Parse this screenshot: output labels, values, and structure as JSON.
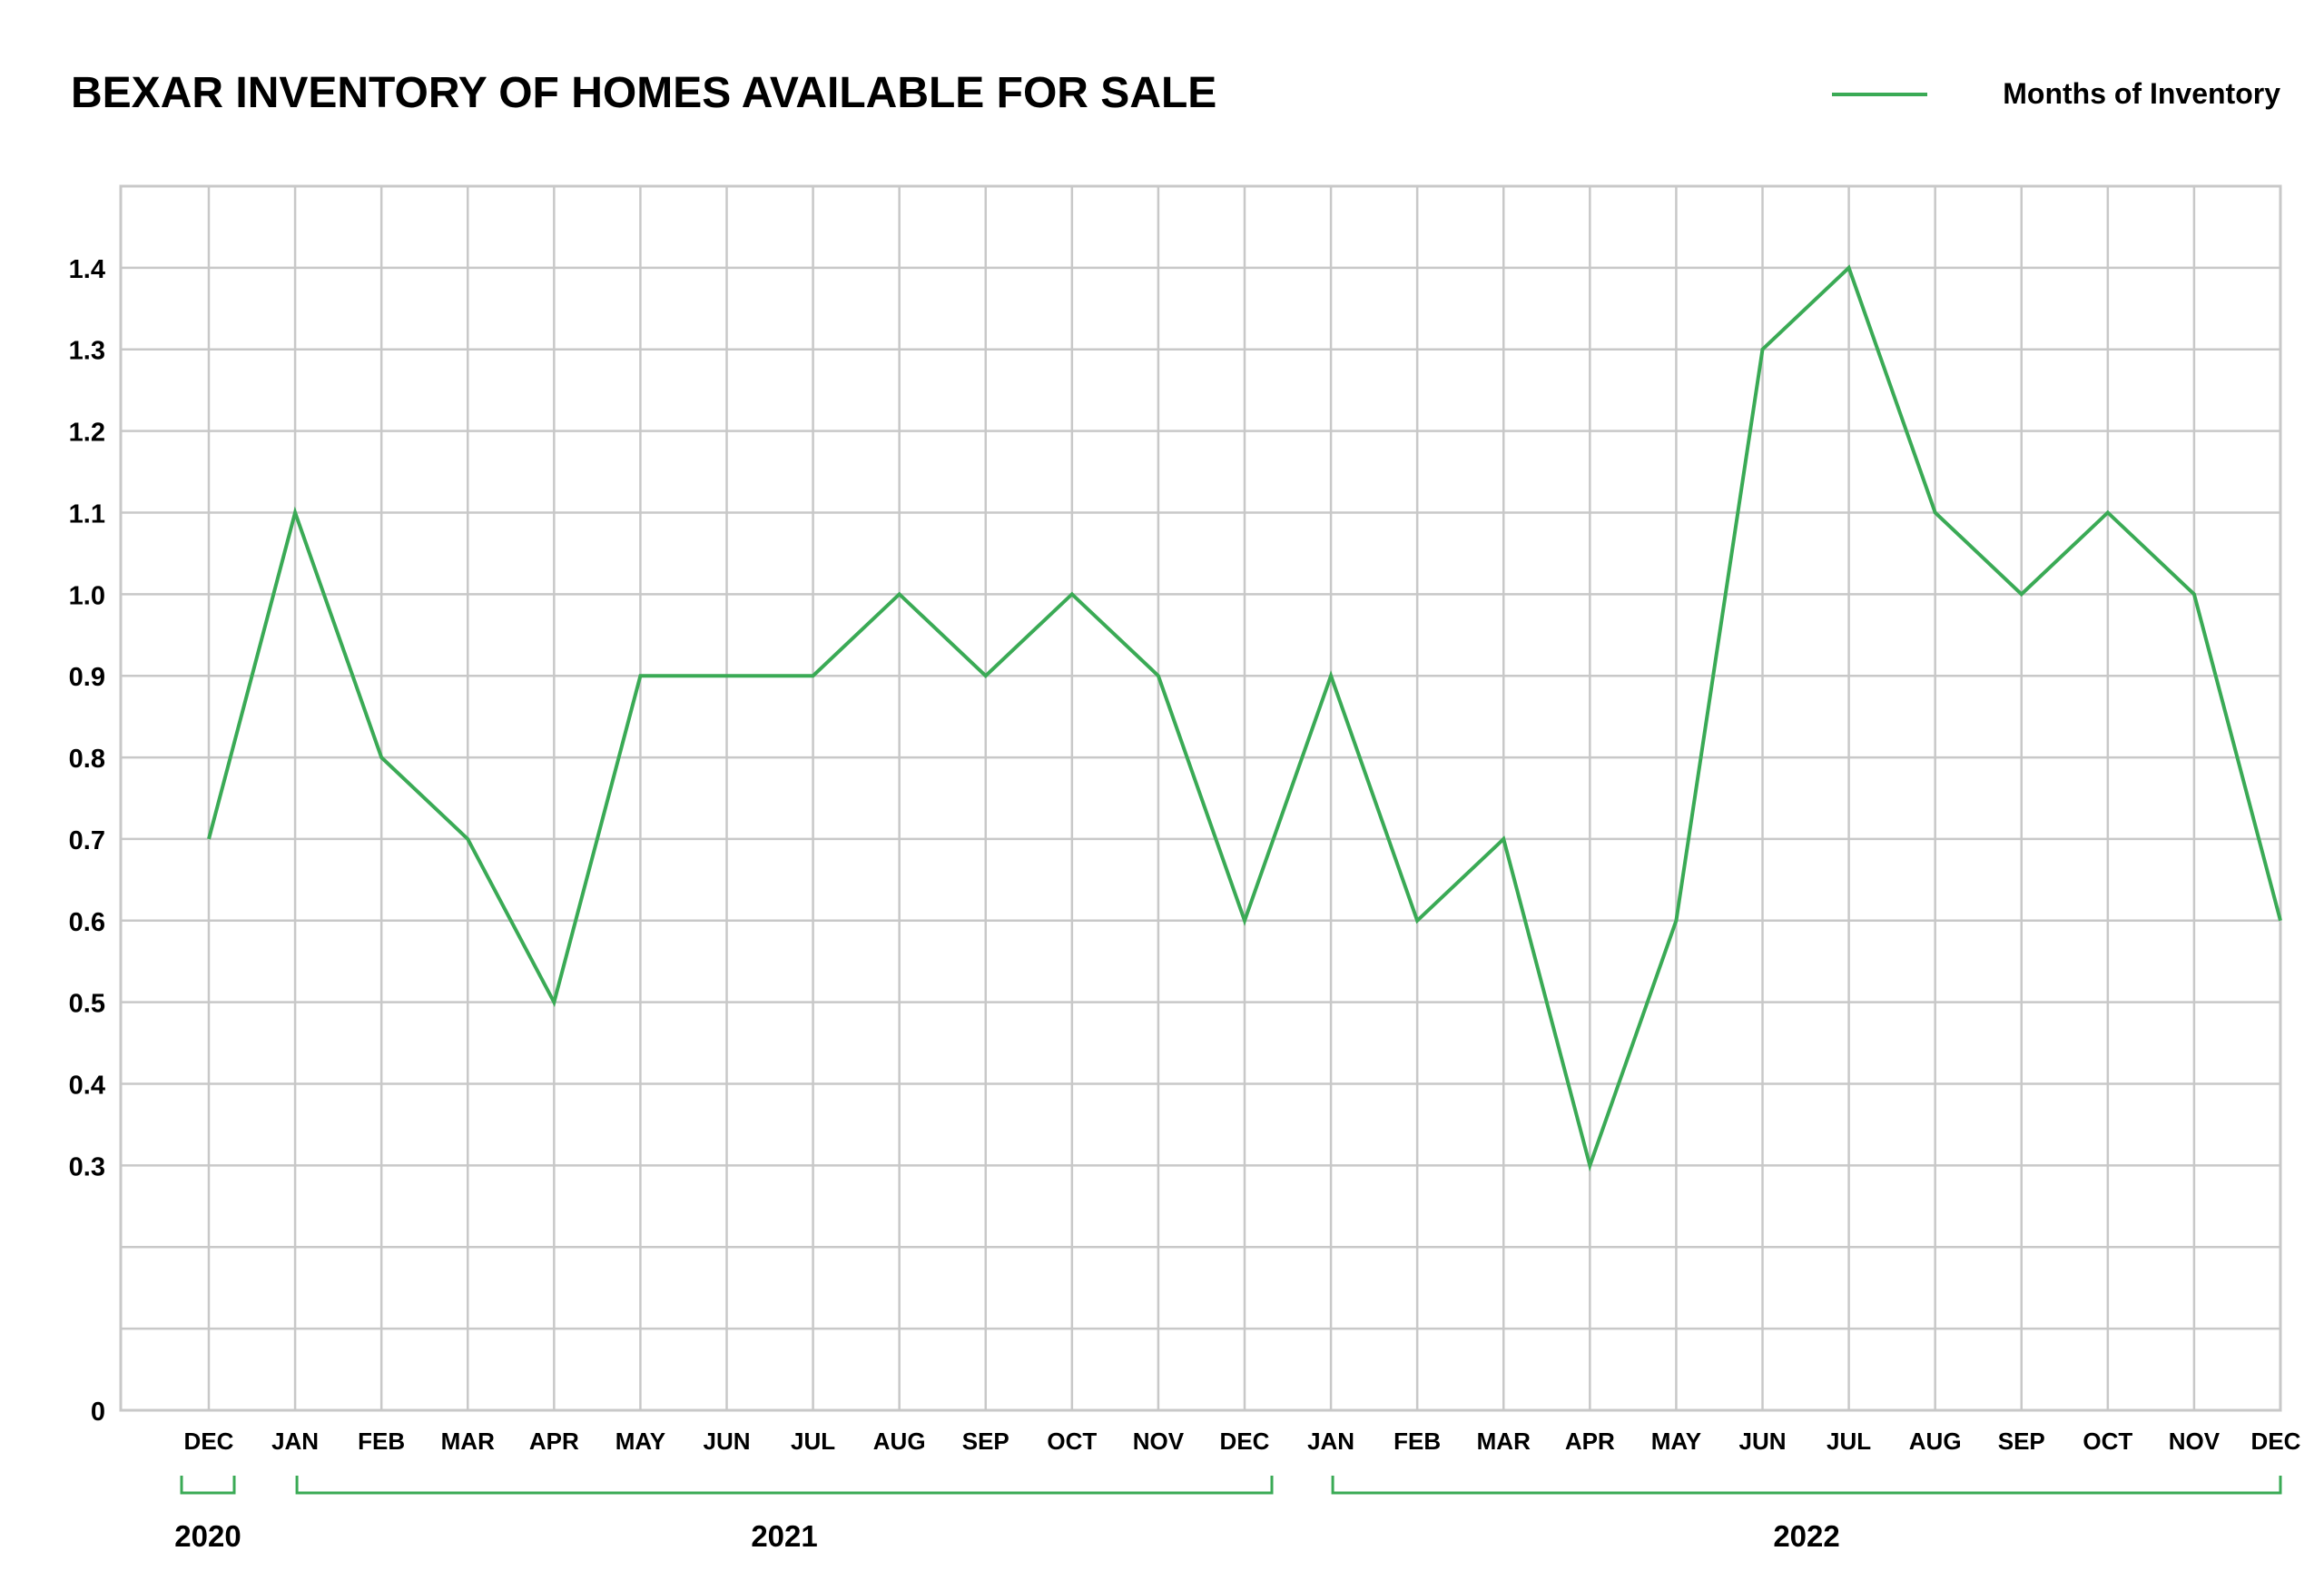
{
  "chart_data": {
    "type": "line",
    "title": "BEXAR INVENTORY OF HOMES AVAILABLE FOR SALE",
    "xlabel": "",
    "ylabel": "",
    "legend": {
      "placement": "top-right",
      "entries": [
        "Months of Inventory"
      ]
    },
    "grid": true,
    "ylim": [
      0,
      1.5
    ],
    "y_ticks": [
      0,
      0.3,
      0.4,
      0.5,
      0.6,
      0.7,
      0.8,
      0.9,
      1.0,
      1.1,
      1.2,
      1.3,
      1.4
    ],
    "y_tick_labels": [
      "0",
      "0.3",
      "0.4",
      "0.5",
      "0.6",
      "0.7",
      "0.8",
      "0.9",
      "1.0",
      "1.1",
      "1.2",
      "1.3",
      "1.4"
    ],
    "categories": [
      "DEC",
      "JAN",
      "FEB",
      "MAR",
      "APR",
      "MAY",
      "JUN",
      "JUL",
      "AUG",
      "SEP",
      "OCT",
      "NOV",
      "DEC",
      "JAN",
      "FEB",
      "MAR",
      "APR",
      "MAY",
      "JUN",
      "JUL",
      "AUG",
      "SEP",
      "OCT",
      "NOV",
      "DEC"
    ],
    "year_groups": [
      {
        "label": "2020",
        "start": 0,
        "end": 0
      },
      {
        "label": "2021",
        "start": 1,
        "end": 12
      },
      {
        "label": "2022",
        "start": 13,
        "end": 24
      }
    ],
    "series": [
      {
        "name": "Months of Inventory",
        "color": "#3aaa55",
        "values": [
          0.7,
          1.1,
          0.8,
          0.7,
          0.5,
          0.9,
          0.9,
          0.9,
          1.0,
          0.9,
          1.0,
          0.9,
          0.6,
          0.9,
          0.6,
          0.7,
          0.3,
          0.6,
          1.3,
          1.4,
          1.1,
          1.0,
          1.1,
          1.0,
          0.6
        ]
      }
    ]
  },
  "colors": {
    "line": "#3aaa55",
    "grid": "#c8c8c8",
    "bracket": "#3aaa55",
    "text": "#000000"
  }
}
